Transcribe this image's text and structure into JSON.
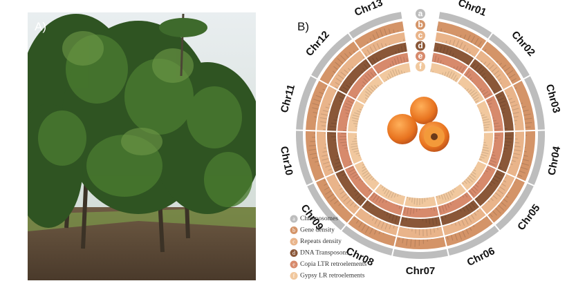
{
  "panels": [
    {
      "label": "A)"
    },
    {
      "label": "B)"
    }
  ],
  "chromosomes": [
    "Chr01",
    "Chr02",
    "Chr03",
    "Chr04",
    "Chr05",
    "Chr06",
    "Chr07",
    "Chr08",
    "Chr09",
    "Chr10",
    "Chr11",
    "Chr12",
    "Chr13"
  ],
  "legend": [
    {
      "key": "a",
      "label": "Chromosomes"
    },
    {
      "key": "b",
      "label": "Gene density"
    },
    {
      "key": "c",
      "label": "Repeats density"
    },
    {
      "key": "d",
      "label": "DNA Transposons"
    },
    {
      "key": "e",
      "label": "Copia LTR retroelements"
    },
    {
      "key": "f",
      "label": "Gypsy LR retroelements"
    }
  ]
}
